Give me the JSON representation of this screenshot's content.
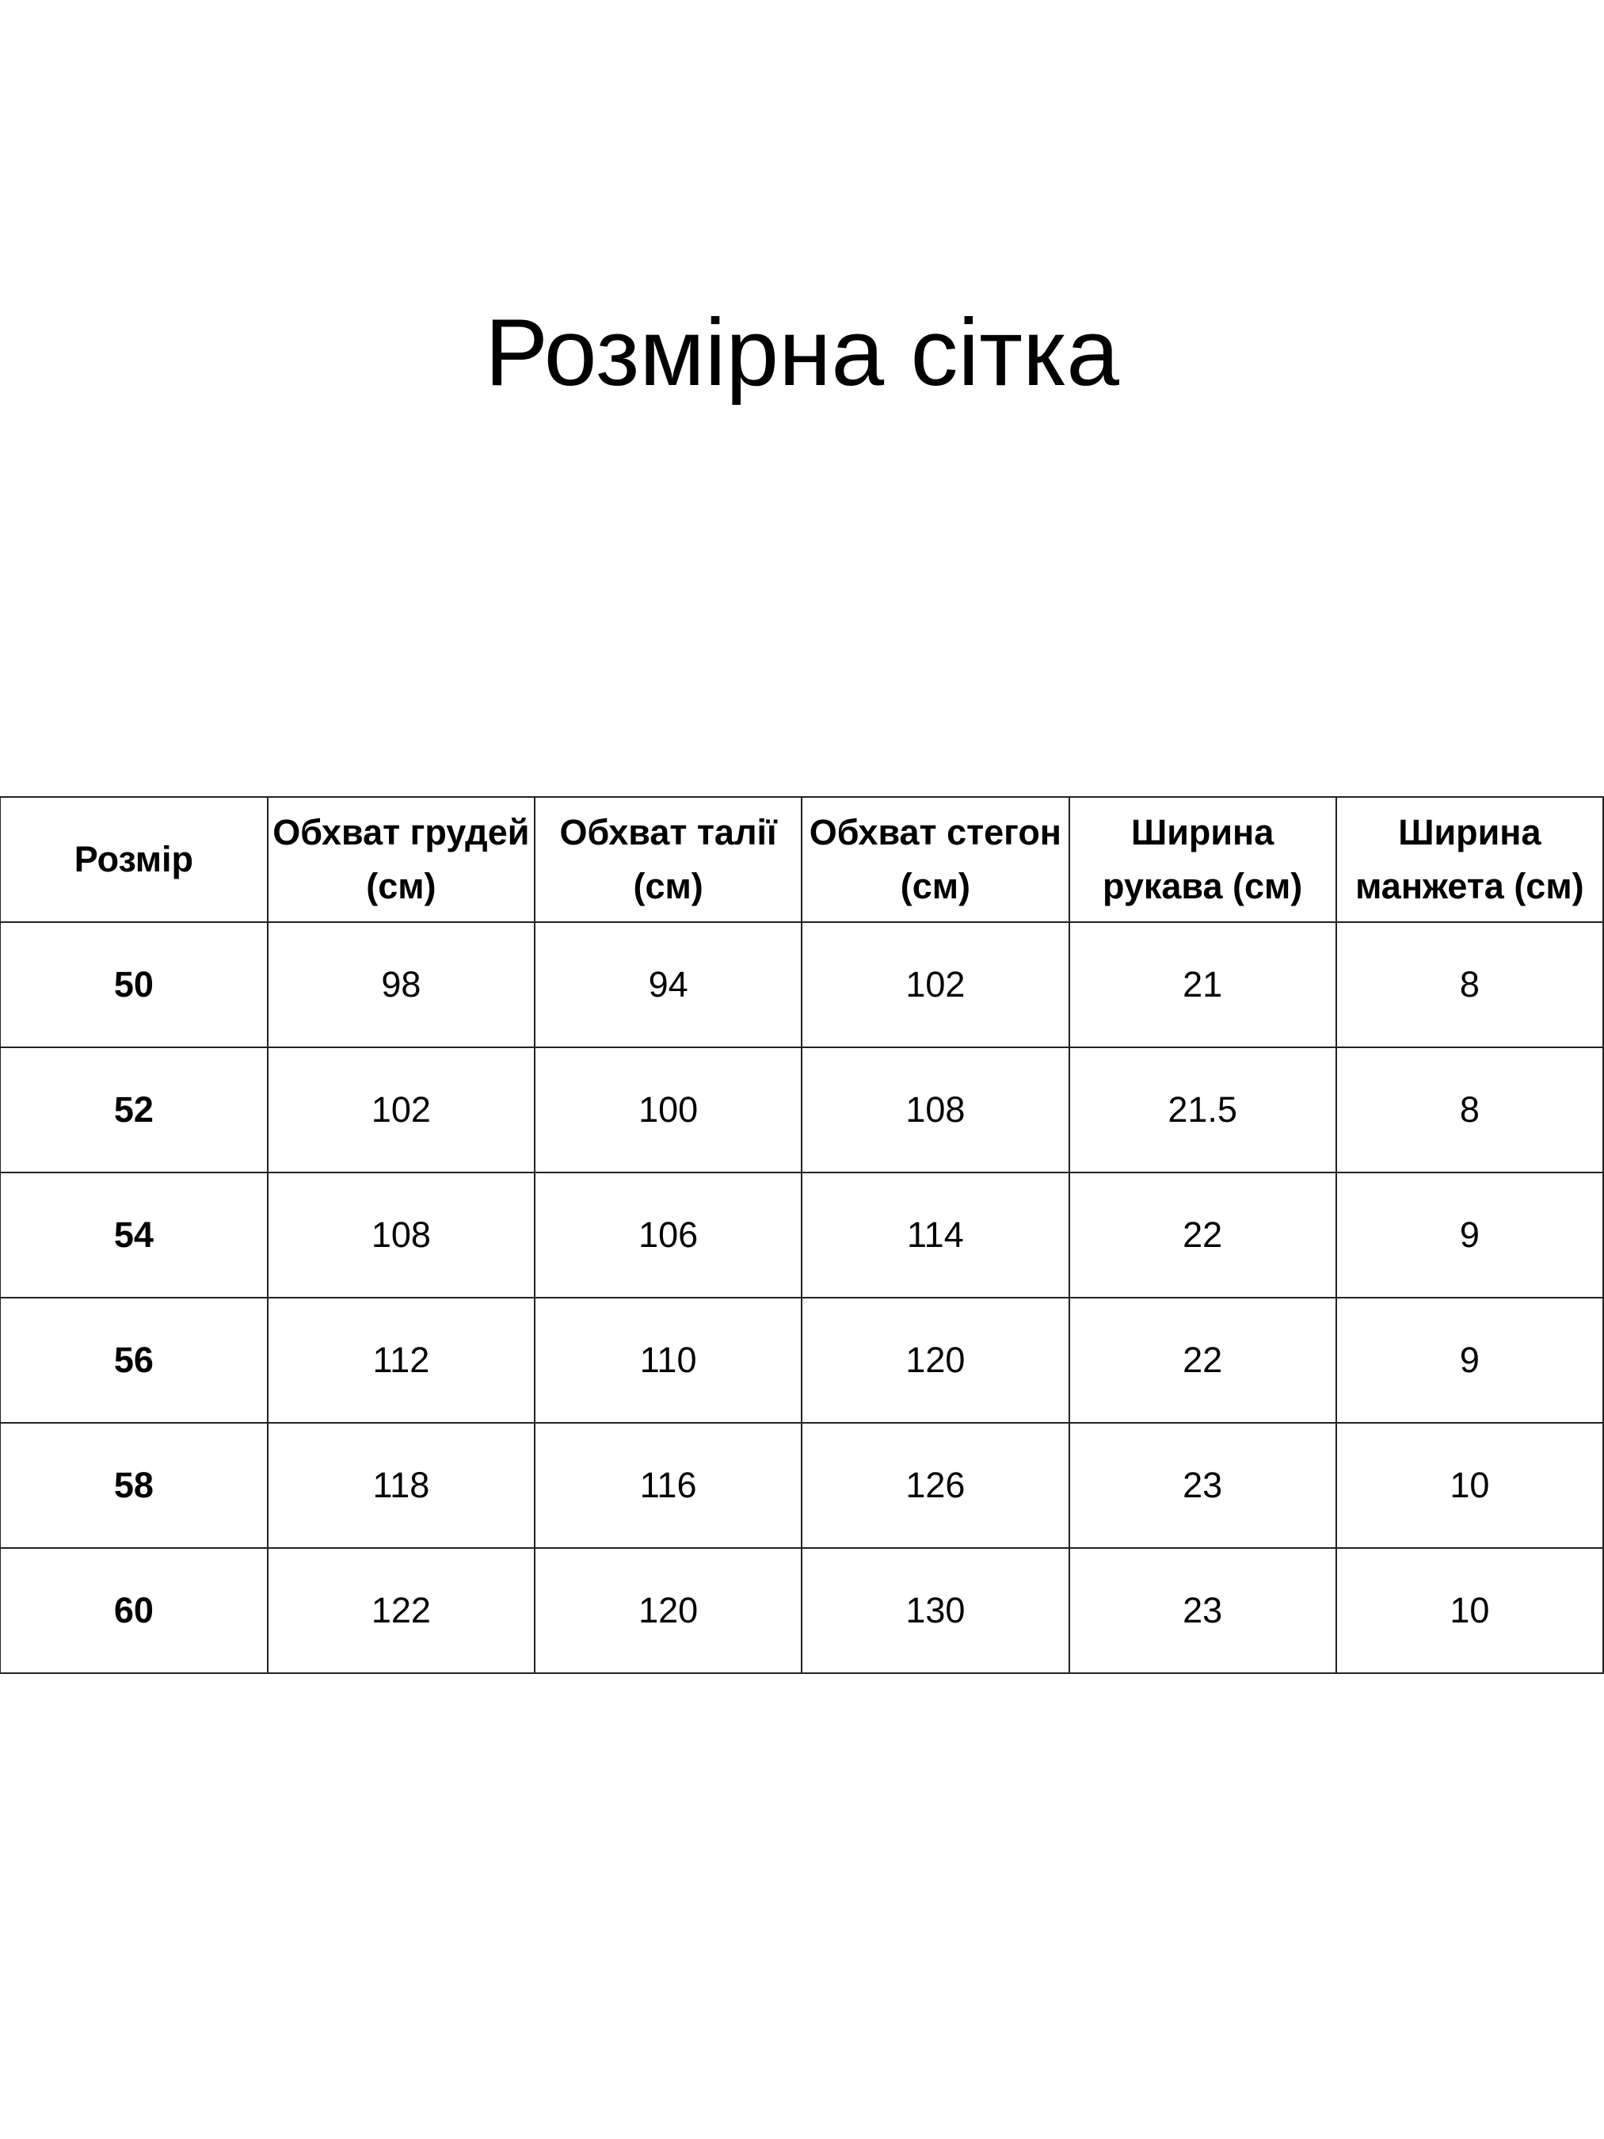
{
  "title": "Розмірна сітка",
  "table": {
    "headers": [
      "Розмір",
      "Обхват грудей (см)",
      "Обхват талії (см)",
      "Обхват стегон (см)",
      "Ширина рукава (см)",
      "Ширина манжета (см)"
    ],
    "rows": [
      [
        "50",
        "98",
        "94",
        "102",
        "21",
        "8"
      ],
      [
        "52",
        "102",
        "100",
        "108",
        "21.5",
        "8"
      ],
      [
        "54",
        "108",
        "106",
        "114",
        "22",
        "9"
      ],
      [
        "56",
        "112",
        "110",
        "120",
        "22",
        "9"
      ],
      [
        "58",
        "118",
        "116",
        "126",
        "23",
        "10"
      ],
      [
        "60",
        "122",
        "120",
        "130",
        "23",
        "10"
      ]
    ]
  }
}
